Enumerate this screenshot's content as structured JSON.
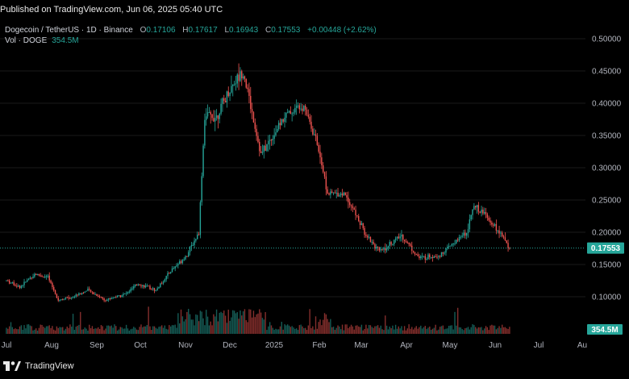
{
  "header": {
    "published": "Published on TradingView.com, Jun 06, 2025 05:40 UTC"
  },
  "legend": {
    "symbol": "Dogecoin / TetherUS · 1D · Binance",
    "o_label": "O",
    "o_value": "0.17106",
    "h_label": "H",
    "h_value": "0.17617",
    "l_label": "L",
    "l_value": "0.16943",
    "c_label": "C",
    "c_value": "0.17553",
    "change": "+0.00448 (+2.62%)",
    "vol_label": "Vol · DOGE",
    "vol_value": "354.5M"
  },
  "colors": {
    "up": "#26a69a",
    "down": "#ef5350",
    "background": "#000000",
    "grid": "#1a1a1a",
    "price_line": "#26a69a"
  },
  "footer": {
    "brand": "TradingView",
    "logo_icon": "tradingview-logo-icon"
  },
  "chart_data": {
    "type": "candlestick",
    "symbol": "DOGEUSDT",
    "interval": "1D",
    "exchange": "Binance",
    "y_axis": {
      "ticks": [
        "0.50000",
        "0.45000",
        "0.40000",
        "0.35000",
        "0.30000",
        "0.25000",
        "0.20000",
        "0.15000",
        "0.10000"
      ],
      "range": [
        0.05,
        0.51
      ]
    },
    "x_axis": {
      "labels": [
        "Jul",
        "Aug",
        "Sep",
        "Oct",
        "Nov",
        "Dec",
        "2025",
        "Feb",
        "Mar",
        "Apr",
        "May",
        "Jun",
        "Jul",
        "Au"
      ]
    },
    "last_price": "0.17553",
    "last_volume": "354.5M",
    "close_path": [
      [
        "2024-07-01",
        0.125
      ],
      [
        "2024-07-10",
        0.115
      ],
      [
        "2024-07-20",
        0.135
      ],
      [
        "2024-07-29",
        0.13
      ],
      [
        "2024-08-05",
        0.095
      ],
      [
        "2024-08-15",
        0.1
      ],
      [
        "2024-08-25",
        0.11
      ],
      [
        "2024-09-06",
        0.095
      ],
      [
        "2024-09-20",
        0.105
      ],
      [
        "2024-09-28",
        0.12
      ],
      [
        "2024-10-10",
        0.11
      ],
      [
        "2024-10-20",
        0.14
      ],
      [
        "2024-10-31",
        0.165
      ],
      [
        "2024-11-08",
        0.2
      ],
      [
        "2024-11-12",
        0.38
      ],
      [
        "2024-11-20",
        0.38
      ],
      [
        "2024-12-01",
        0.43
      ],
      [
        "2024-12-08",
        0.45
      ],
      [
        "2024-12-20",
        0.32
      ],
      [
        "2025-01-05",
        0.38
      ],
      [
        "2025-01-18",
        0.4
      ],
      [
        "2025-01-28",
        0.33
      ],
      [
        "2025-02-03",
        0.26
      ],
      [
        "2025-02-15",
        0.26
      ],
      [
        "2025-02-28",
        0.2
      ],
      [
        "2025-03-10",
        0.17
      ],
      [
        "2025-03-25",
        0.195
      ],
      [
        "2025-04-06",
        0.16
      ],
      [
        "2025-04-20",
        0.165
      ],
      [
        "2025-05-08",
        0.2
      ],
      [
        "2025-05-12",
        0.24
      ],
      [
        "2025-05-20",
        0.23
      ],
      [
        "2025-05-30",
        0.2
      ],
      [
        "2025-06-06",
        0.17553
      ]
    ]
  }
}
